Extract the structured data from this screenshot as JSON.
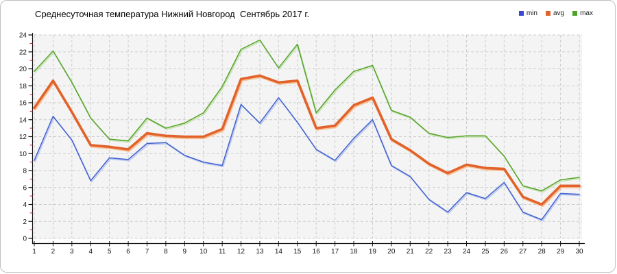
{
  "title": "Среднесуточная температура Нижний Новгород  Сентябрь 2017 г.",
  "legend": {
    "position": "top-right",
    "items": [
      {
        "label": "min",
        "color": "#3947d2"
      },
      {
        "label": "avg",
        "color": "#e2622b"
      },
      {
        "label": "max",
        "color": "#4da328"
      }
    ]
  },
  "chart_data": {
    "type": "line",
    "title": "Среднесуточная температура Нижний Новгород  Сентябрь 2017 г.",
    "xlabel": "",
    "ylabel": "",
    "x": [
      1,
      2,
      3,
      4,
      5,
      6,
      7,
      8,
      9,
      10,
      11,
      12,
      13,
      14,
      15,
      16,
      17,
      18,
      19,
      20,
      21,
      22,
      23,
      24,
      25,
      26,
      27,
      28,
      29,
      30
    ],
    "xlim": [
      1,
      30
    ],
    "ylim": [
      0,
      24
    ],
    "y_tick_step": 2,
    "grid": true,
    "legend_position": "top-right",
    "series": [
      {
        "name": "min",
        "color": "#4664d0",
        "shadow_color": "#bac8f0",
        "line_width": 1.6,
        "values": [
          9.2,
          14.4,
          11.6,
          6.8,
          9.5,
          9.3,
          11.2,
          11.3,
          9.8,
          9.0,
          8.6,
          15.8,
          13.6,
          16.6,
          13.7,
          10.5,
          9.2,
          11.8,
          14.0,
          8.6,
          7.3,
          4.6,
          3.1,
          5.4,
          4.7,
          6.6,
          3.1,
          2.2,
          5.3,
          5.2
        ]
      },
      {
        "name": "avg",
        "color": "#e2622b",
        "shadow_color": "#f6c096",
        "line_width": 3.6,
        "values": [
          15.4,
          18.6,
          14.9,
          11.0,
          10.8,
          10.5,
          12.4,
          12.1,
          12.0,
          12.0,
          12.9,
          18.8,
          19.2,
          18.4,
          18.6,
          13.0,
          13.3,
          15.7,
          16.6,
          11.7,
          10.4,
          8.8,
          7.7,
          8.7,
          8.3,
          8.2,
          4.9,
          4.0,
          6.2,
          6.2
        ]
      },
      {
        "name": "max",
        "color": "#58a52c",
        "shadow_color": "#c6e2b2",
        "line_width": 1.6,
        "values": [
          19.7,
          22.1,
          18.4,
          14.2,
          11.7,
          11.5,
          14.2,
          13.0,
          13.6,
          14.8,
          17.9,
          22.3,
          23.4,
          20.1,
          22.9,
          14.8,
          17.5,
          19.7,
          20.4,
          15.1,
          14.3,
          12.4,
          11.9,
          12.1,
          12.1,
          9.7,
          6.2,
          5.6,
          6.9,
          7.2
        ]
      }
    ],
    "style": {
      "plot_bg": "#f4f4f4",
      "grid_color": "#cccccc",
      "axis_color": "#111111",
      "tick_label_color": "#111111",
      "y_minor_tick_color": "#cc2a2a"
    }
  }
}
